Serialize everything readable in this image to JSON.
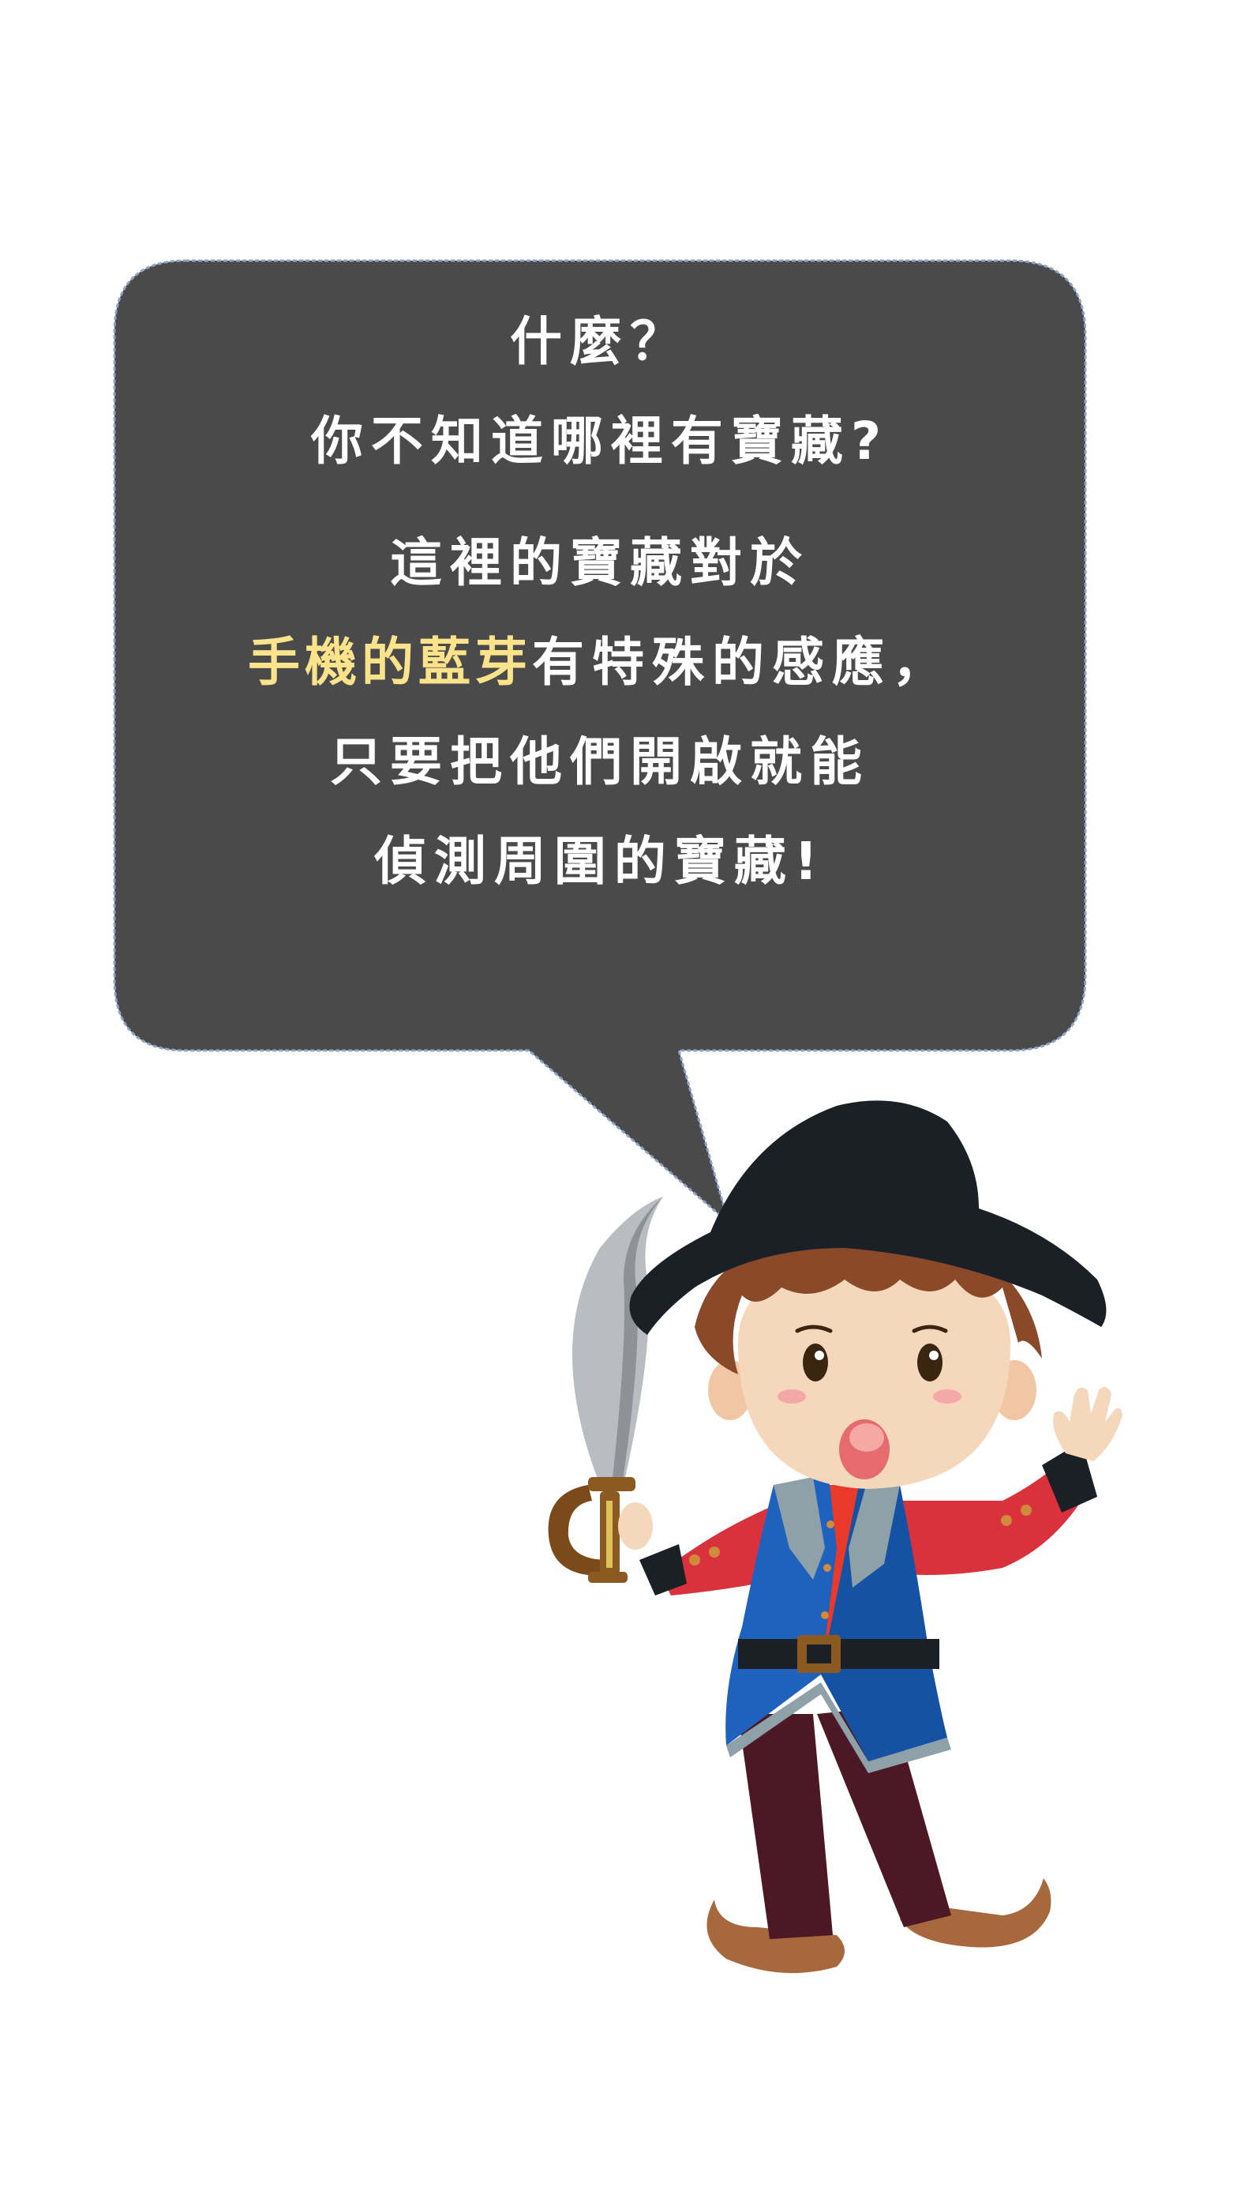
{
  "speech_bubble": {
    "line1": "什麼？",
    "line2": "你不知道哪裡有寶藏?",
    "line3": "這裡的寶藏對於",
    "line4_highlight": "手機的藍芽",
    "line4_rest": "有特殊的感應，",
    "line5": "只要把他們開啟就能",
    "line6": "偵測周圍的寶藏!"
  },
  "colors": {
    "bubble_fill": "#4a4a4b",
    "bubble_border": "#8fa3c9",
    "text": "#ffffff",
    "highlight": "#fbe38c",
    "hat": "#1b1f26",
    "skin": "#f5d8bb",
    "hair": "#8a4a2a",
    "sleeve": "#d9323c",
    "vest": "#1f62bd",
    "pants": "#4d1825",
    "shoes": "#a8683e"
  }
}
